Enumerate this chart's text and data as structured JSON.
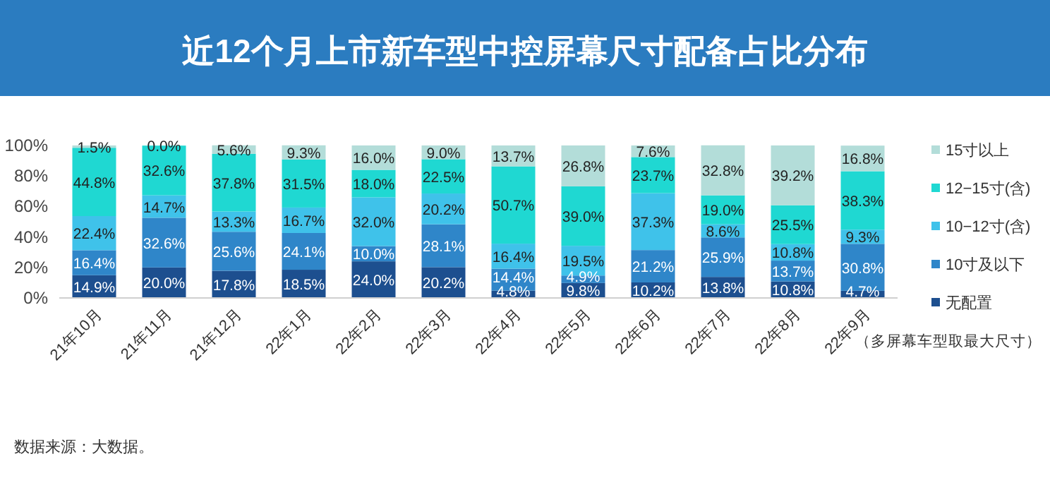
{
  "chart_data": {
    "type": "bar",
    "stacked": true,
    "title": "近12个月上市新车型中控屏幕尺寸配备占比分布",
    "categories": [
      "21年10月",
      "21年11月",
      "21年12月",
      "22年1月",
      "22年2月",
      "22年3月",
      "22年4月",
      "22年5月",
      "22年6月",
      "22年7月",
      "22年8月",
      "22年9月"
    ],
    "series": [
      {
        "name": "无配置",
        "color": "#1d4f8f",
        "values": [
          14.9,
          20.0,
          17.8,
          18.5,
          24.0,
          20.2,
          4.8,
          9.8,
          10.2,
          13.8,
          10.8,
          4.7
        ],
        "value_labels": [
          "14.9%",
          "20.0%",
          "17.8%",
          "18.5%",
          "24.0%",
          "20.2%",
          "4.8%",
          "9.8%",
          "10.2%",
          "13.8%",
          "10.8%",
          "4.7%"
        ]
      },
      {
        "name": "10寸及以下",
        "color": "#2f86c9",
        "values": [
          16.4,
          32.6,
          25.6,
          24.1,
          10.0,
          28.1,
          14.4,
          4.9,
          21.2,
          25.9,
          13.7,
          30.8
        ],
        "value_labels": [
          "16.4%",
          "32.6%",
          "25.6%",
          "24.1%",
          "10.0%",
          "28.1%",
          "14.4%",
          "4.9%",
          "21.2%",
          "25.9%",
          "13.7%",
          "30.8%"
        ]
      },
      {
        "name": "10−12寸(含)",
        "color": "#3fc2ea",
        "values": [
          22.4,
          14.7,
          13.3,
          16.7,
          32.0,
          20.2,
          16.4,
          19.5,
          37.3,
          8.6,
          10.8,
          9.3
        ],
        "value_labels": [
          "22.4%",
          "14.7%",
          "13.3%",
          "16.7%",
          "32.0%",
          "20.2%",
          "16.4%",
          "19.5%",
          "37.3%",
          "8.6%",
          "10.8%",
          "9.3%"
        ]
      },
      {
        "name": "12−15寸(含)",
        "color": "#1fd8d2",
        "values": [
          44.8,
          32.6,
          37.8,
          31.5,
          18.0,
          22.5,
          50.7,
          39.0,
          23.7,
          19.0,
          25.5,
          38.3
        ],
        "value_labels": [
          "44.8%",
          "32.6%",
          "37.8%",
          "31.5%",
          "18.0%",
          "22.5%",
          "50.7%",
          "39.0%",
          "23.7%",
          "19.0%",
          "25.5%",
          "38.3%"
        ]
      },
      {
        "name": "15寸以上",
        "color": "#b3ddd9",
        "values": [
          1.5,
          0.0,
          5.6,
          9.3,
          16.0,
          9.0,
          13.7,
          26.8,
          7.6,
          32.8,
          39.2,
          16.8
        ],
        "value_labels": [
          "1.5%",
          "0.0%",
          "5.6%",
          "9.3%",
          "16.0%",
          "9.0%",
          "13.7%",
          "26.8%",
          "7.6%",
          "32.8%",
          "39.2%",
          "16.8%"
        ]
      }
    ],
    "ylim": [
      0,
      100
    ],
    "yticks": [
      {
        "value": 0,
        "label": "0%"
      },
      {
        "value": 20,
        "label": "20%"
      },
      {
        "value": 40,
        "label": "40%"
      },
      {
        "value": 60,
        "label": "60%"
      },
      {
        "value": 80,
        "label": "80%"
      },
      {
        "value": 100,
        "label": "100%"
      }
    ],
    "legend": "right",
    "grid": false,
    "annotations": [
      "（多屏幕车型取最大尺寸）",
      "数据来源：大数据。"
    ]
  }
}
